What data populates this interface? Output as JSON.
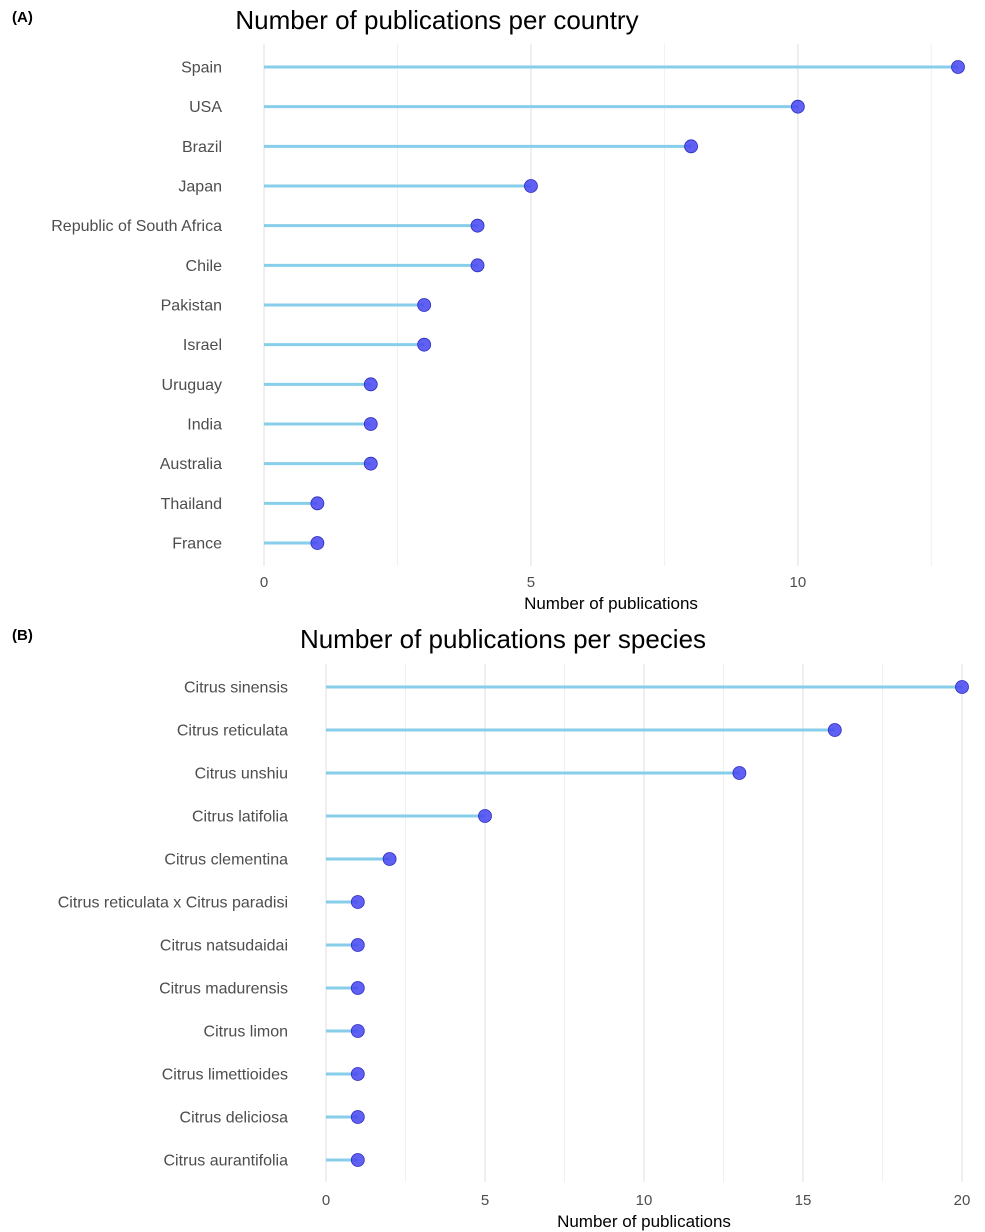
{
  "chart_data": [
    {
      "type": "lollipop",
      "panel_label": "(A)",
      "title": "Number of publications per country",
      "xlabel": "Number of publications",
      "ylabel": "",
      "xlim": [
        0,
        13
      ],
      "xticks": [
        0,
        5,
        10
      ],
      "grid": true,
      "categories": [
        "Spain",
        "USA",
        "Brazil",
        "Japan",
        "Republic of South Africa",
        "Chile",
        "Pakistan",
        "Israel",
        "Uruguay",
        "India",
        "Australia",
        "Thailand",
        "France"
      ],
      "values": [
        13,
        10,
        8,
        5,
        4,
        4,
        3,
        3,
        2,
        2,
        2,
        1,
        1
      ],
      "stem_color": "#87ceeb",
      "point_color": "#4a4af0"
    },
    {
      "type": "lollipop",
      "panel_label": "(B)",
      "title": "Number of publications per species",
      "xlabel": "Number of publications",
      "ylabel": "",
      "xlim": [
        0,
        20
      ],
      "xticks": [
        0,
        5,
        10,
        15,
        20
      ],
      "grid": true,
      "categories": [
        "Citrus sinensis",
        "Citrus reticulata",
        "Citrus unshiu",
        "Citrus latifolia",
        "Citrus clementina",
        "Citrus reticulata x Citrus paradisi",
        "Citrus natsudaidai",
        "Citrus madurensis",
        "Citrus limon",
        "Citrus limettioides",
        "Citrus deliciosa",
        "Citrus aurantifolia"
      ],
      "values": [
        20,
        16,
        13,
        5,
        2,
        1,
        1,
        1,
        1,
        1,
        1,
        1
      ],
      "stem_color": "#87ceeb",
      "point_color": "#4a4af0"
    }
  ]
}
